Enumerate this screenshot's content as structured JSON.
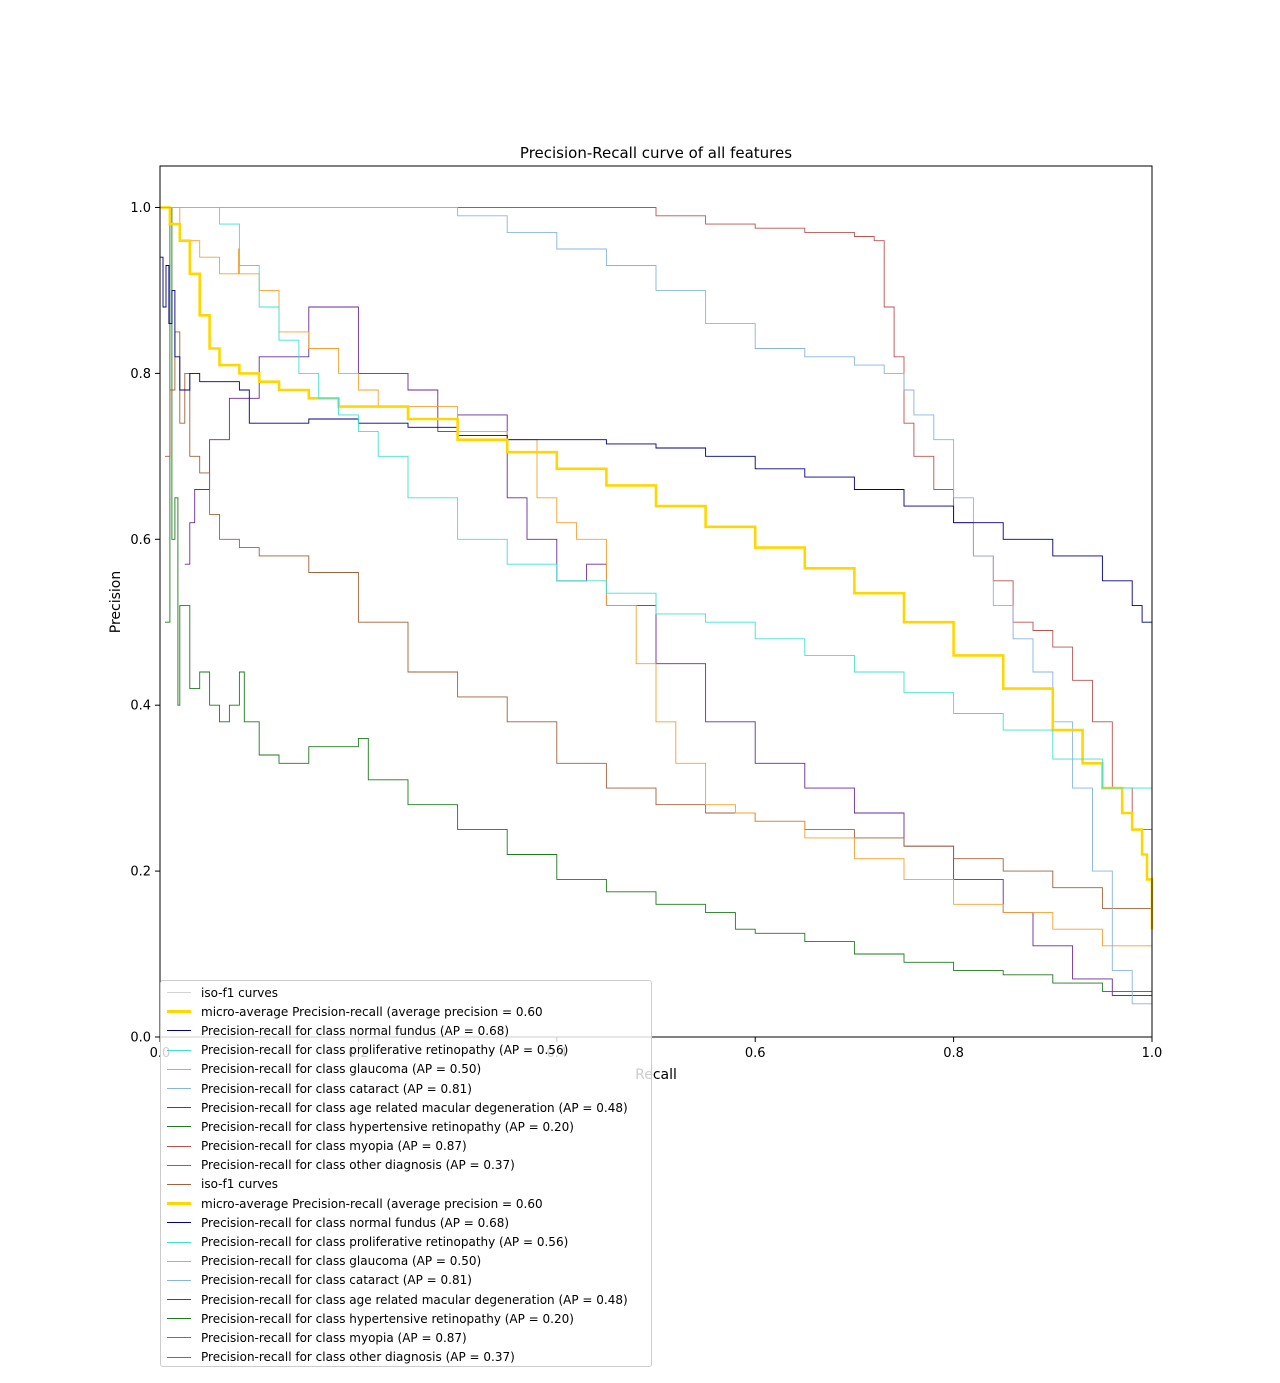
{
  "chart_data": {
    "type": "line",
    "title": "Precision-Recall curve of all features",
    "xlabel": "Recall",
    "ylabel": "Precision",
    "xlim": [
      0.0,
      1.0
    ],
    "ylim": [
      0.0,
      1.05
    ],
    "xticks": [
      "0.0",
      "0.2",
      "0.4",
      "0.6",
      "0.8",
      "1.0"
    ],
    "yticks": [
      "0.0",
      "0.2",
      "0.4",
      "0.6",
      "0.8",
      "1.0"
    ],
    "grid": false,
    "legend_position": "lower-left",
    "legend": [
      {
        "label": "iso-f1 curves",
        "color": "#d3d3d3",
        "width": 1
      },
      {
        "label": "micro-average Precision-recall (average precision = 0.60",
        "color": "#ffd700",
        "width": 2
      },
      {
        "label": "Precision-recall for class normal fundus (AP = 0.68)",
        "color": "#000080",
        "width": 1
      },
      {
        "label": "Precision-recall for class proliferative retinopathy (AP = 0.56)",
        "color": "#40e0d0",
        "width": 1
      },
      {
        "label": "Precision-recall for class glaucoma (AP = 0.50)",
        "color": "#f5a030",
        "width": 1
      },
      {
        "label": "Precision-recall for class cataract (AP = 0.81)",
        "color": "#87b4e0",
        "width": 1
      },
      {
        "label": "Precision-recall for class age related macular degeneration (AP = 0.48)",
        "color": "#6a2a9a",
        "width": 1
      },
      {
        "label": "Precision-recall for class hypertensive retinopathy (AP = 0.20)",
        "color": "#1e7a1e",
        "width": 1
      },
      {
        "label": "Precision-recall for class myopia (AP = 0.87)",
        "color": "#b85450",
        "width": 1
      },
      {
        "label": "Precision-recall for class other diagnosis (AP = 0.37)",
        "color": "#a0623a",
        "width": 1
      },
      {
        "label": "iso-f1 curves",
        "color": "#a0623a",
        "width": 1
      },
      {
        "label": "micro-average Precision-recall (average precision = 0.60",
        "color": "#ffd700",
        "width": 2
      },
      {
        "label": "Precision-recall for class normal fundus (AP = 0.68)",
        "color": "#000080",
        "width": 1
      },
      {
        "label": "Precision-recall for class proliferative retinopathy (AP = 0.56)",
        "color": "#40e0d0",
        "width": 1
      },
      {
        "label": "Precision-recall for class glaucoma (AP = 0.50)",
        "color": "#f5a030",
        "width": 1
      },
      {
        "label": "Precision-recall for class cataract (AP = 0.81)",
        "color": "#87b4e0",
        "width": 1
      },
      {
        "label": "Precision-recall for class age related macular degeneration (AP = 0.48)",
        "color": "#6a2a9a",
        "width": 1
      },
      {
        "label": "Precision-recall for class hypertensive retinopathy (AP = 0.20)",
        "color": "#1e7a1e",
        "width": 1
      },
      {
        "label": "Precision-recall for class myopia (AP = 0.87)",
        "color": "#b85450",
        "width": 1
      },
      {
        "label": "Precision-recall for class other diagnosis (AP = 0.37)",
        "color": "#a0623a",
        "width": 1
      }
    ],
    "series": [
      {
        "name": "micro-average Precision-recall (average precision = 0.60",
        "color": "#ffd700",
        "width": 2.6,
        "x": [
          0,
          0.005,
          0.01,
          0.02,
          0.03,
          0.04,
          0.05,
          0.06,
          0.08,
          0.1,
          0.12,
          0.15,
          0.18,
          0.2,
          0.25,
          0.3,
          0.35,
          0.4,
          0.45,
          0.5,
          0.55,
          0.6,
          0.65,
          0.7,
          0.75,
          0.8,
          0.85,
          0.9,
          0.93,
          0.95,
          0.97,
          0.98,
          0.99,
          0.995,
          1.0
        ],
        "y": [
          1.0,
          1.0,
          0.98,
          0.96,
          0.92,
          0.87,
          0.83,
          0.81,
          0.8,
          0.79,
          0.78,
          0.77,
          0.76,
          0.76,
          0.745,
          0.72,
          0.705,
          0.685,
          0.665,
          0.64,
          0.615,
          0.59,
          0.565,
          0.535,
          0.5,
          0.46,
          0.42,
          0.37,
          0.33,
          0.3,
          0.27,
          0.25,
          0.22,
          0.19,
          0.13
        ]
      },
      {
        "name": "Precision-recall for class normal fundus (AP = 0.68)",
        "color": "#000080",
        "width": 0.9,
        "x": [
          0,
          0.003,
          0.006,
          0.009,
          0.012,
          0.015,
          0.02,
          0.03,
          0.04,
          0.05,
          0.06,
          0.07,
          0.08,
          0.09,
          0.1,
          0.15,
          0.2,
          0.25,
          0.3,
          0.35,
          0.4,
          0.45,
          0.5,
          0.55,
          0.6,
          0.65,
          0.7,
          0.75,
          0.8,
          0.85,
          0.9,
          0.95,
          0.98,
          0.99,
          1.0
        ],
        "y": [
          0.94,
          0.88,
          0.93,
          0.86,
          0.9,
          0.82,
          0.78,
          0.8,
          0.79,
          0.79,
          0.79,
          0.79,
          0.78,
          0.74,
          0.74,
          0.745,
          0.74,
          0.735,
          0.725,
          0.72,
          0.72,
          0.715,
          0.71,
          0.7,
          0.685,
          0.675,
          0.66,
          0.64,
          0.62,
          0.6,
          0.58,
          0.55,
          0.52,
          0.5,
          0.48
        ]
      },
      {
        "name": "Precision-recall for class proliferative retinopathy (AP = 0.56)",
        "color": "#40e0d0",
        "width": 0.9,
        "x": [
          0,
          0.02,
          0.04,
          0.06,
          0.08,
          0.1,
          0.12,
          0.14,
          0.16,
          0.18,
          0.2,
          0.22,
          0.25,
          0.3,
          0.35,
          0.4,
          0.45,
          0.5,
          0.55,
          0.6,
          0.65,
          0.7,
          0.75,
          0.8,
          0.85,
          0.9,
          0.95,
          1.0
        ],
        "y": [
          1.0,
          1.0,
          1.0,
          0.98,
          0.93,
          0.88,
          0.84,
          0.8,
          0.77,
          0.75,
          0.73,
          0.7,
          0.65,
          0.6,
          0.57,
          0.55,
          0.535,
          0.51,
          0.5,
          0.48,
          0.46,
          0.44,
          0.415,
          0.39,
          0.37,
          0.335,
          0.3,
          0.28
        ]
      },
      {
        "name": "Precision-recall for class glaucoma (AP = 0.50)",
        "color": "#f5a030",
        "width": 0.9,
        "x": [
          0,
          0.01,
          0.02,
          0.04,
          0.06,
          0.08,
          0.079,
          0.1,
          0.12,
          0.15,
          0.18,
          0.2,
          0.22,
          0.25,
          0.3,
          0.35,
          0.38,
          0.4,
          0.42,
          0.45,
          0.48,
          0.5,
          0.52,
          0.55,
          0.58,
          0.6,
          0.65,
          0.7,
          0.75,
          0.8,
          0.85,
          0.9,
          0.95,
          1.0
        ],
        "y": [
          1.0,
          1.0,
          0.96,
          0.94,
          0.92,
          0.95,
          0.92,
          0.9,
          0.85,
          0.83,
          0.8,
          0.78,
          0.76,
          0.76,
          0.73,
          0.72,
          0.65,
          0.62,
          0.6,
          0.52,
          0.45,
          0.38,
          0.33,
          0.28,
          0.27,
          0.26,
          0.24,
          0.215,
          0.19,
          0.16,
          0.15,
          0.13,
          0.11,
          0.055
        ]
      },
      {
        "name": "Precision-recall for class cataract (AP = 0.81)",
        "color": "#87b4e0",
        "width": 0.9,
        "x": [
          0,
          0.2,
          0.27,
          0.3,
          0.35,
          0.4,
          0.45,
          0.5,
          0.55,
          0.6,
          0.65,
          0.7,
          0.73,
          0.75,
          0.76,
          0.78,
          0.8,
          0.82,
          0.84,
          0.86,
          0.88,
          0.9,
          0.92,
          0.94,
          0.96,
          0.98,
          1.0
        ],
        "y": [
          1.0,
          1.0,
          1.0,
          0.99,
          0.97,
          0.95,
          0.93,
          0.9,
          0.86,
          0.83,
          0.82,
          0.81,
          0.8,
          0.78,
          0.75,
          0.72,
          0.65,
          0.58,
          0.52,
          0.48,
          0.44,
          0.38,
          0.3,
          0.2,
          0.08,
          0.04,
          0.035
        ]
      },
      {
        "name": "Precision-recall for class age related macular degeneration (AP = 0.48)",
        "color": "#6a2a9a",
        "width": 0.9,
        "x": [
          0.025,
          0.03,
          0.035,
          0.05,
          0.07,
          0.1,
          0.15,
          0.2,
          0.25,
          0.28,
          0.3,
          0.35,
          0.37,
          0.4,
          0.43,
          0.45,
          0.5,
          0.55,
          0.6,
          0.65,
          0.7,
          0.75,
          0.8,
          0.85,
          0.88,
          0.92,
          0.96,
          1.0
        ],
        "y": [
          0.57,
          0.62,
          0.66,
          0.72,
          0.77,
          0.82,
          0.88,
          0.8,
          0.78,
          0.73,
          0.75,
          0.65,
          0.6,
          0.55,
          0.57,
          0.52,
          0.45,
          0.38,
          0.33,
          0.3,
          0.27,
          0.23,
          0.19,
          0.15,
          0.11,
          0.07,
          0.05,
          0.035
        ]
      },
      {
        "name": "Precision-recall for class hypertensive retinopathy (AP = 0.20)",
        "color": "#1e7a1e",
        "width": 0.9,
        "x": [
          0.005,
          0.01,
          0.012,
          0.015,
          0.018,
          0.02,
          0.03,
          0.04,
          0.05,
          0.06,
          0.07,
          0.08,
          0.085,
          0.1,
          0.12,
          0.15,
          0.18,
          0.2,
          0.21,
          0.25,
          0.3,
          0.35,
          0.4,
          0.45,
          0.5,
          0.55,
          0.58,
          0.6,
          0.65,
          0.7,
          0.75,
          0.8,
          0.85,
          0.9,
          0.95,
          1.0
        ],
        "y": [
          0.5,
          1.0,
          0.6,
          0.65,
          0.4,
          0.52,
          0.42,
          0.44,
          0.4,
          0.38,
          0.4,
          0.44,
          0.38,
          0.34,
          0.33,
          0.35,
          0.35,
          0.36,
          0.31,
          0.28,
          0.25,
          0.22,
          0.19,
          0.175,
          0.16,
          0.15,
          0.13,
          0.125,
          0.115,
          0.1,
          0.09,
          0.08,
          0.075,
          0.065,
          0.055,
          0.045
        ]
      },
      {
        "name": "Precision-recall for class myopia (AP = 0.87)",
        "color": "#b85450",
        "width": 0.9,
        "x": [
          0,
          0.1,
          0.2,
          0.3,
          0.4,
          0.44,
          0.5,
          0.55,
          0.6,
          0.65,
          0.7,
          0.72,
          0.73,
          0.74,
          0.75,
          0.76,
          0.78,
          0.8,
          0.82,
          0.84,
          0.86,
          0.88,
          0.9,
          0.92,
          0.94,
          0.96,
          0.98,
          1.0
        ],
        "y": [
          1.0,
          1.0,
          1.0,
          1.0,
          1.0,
          1.0,
          0.99,
          0.98,
          0.975,
          0.97,
          0.965,
          0.96,
          0.88,
          0.82,
          0.74,
          0.7,
          0.66,
          0.62,
          0.58,
          0.55,
          0.5,
          0.49,
          0.47,
          0.43,
          0.38,
          0.3,
          0.25,
          0.225
        ]
      },
      {
        "name": "Precision-recall for class other diagnosis (AP = 0.37)",
        "color": "#a0623a",
        "width": 0.9,
        "x": [
          0.005,
          0.01,
          0.015,
          0.02,
          0.025,
          0.03,
          0.04,
          0.05,
          0.06,
          0.08,
          0.1,
          0.15,
          0.2,
          0.25,
          0.3,
          0.35,
          0.4,
          0.45,
          0.5,
          0.55,
          0.6,
          0.65,
          0.7,
          0.75,
          0.8,
          0.85,
          0.9,
          0.95,
          1.0
        ],
        "y": [
          0.7,
          0.78,
          0.85,
          0.74,
          0.8,
          0.7,
          0.68,
          0.63,
          0.6,
          0.59,
          0.58,
          0.56,
          0.5,
          0.44,
          0.41,
          0.38,
          0.33,
          0.3,
          0.28,
          0.27,
          0.26,
          0.25,
          0.24,
          0.23,
          0.215,
          0.2,
          0.18,
          0.155,
          0.15
        ]
      }
    ]
  }
}
